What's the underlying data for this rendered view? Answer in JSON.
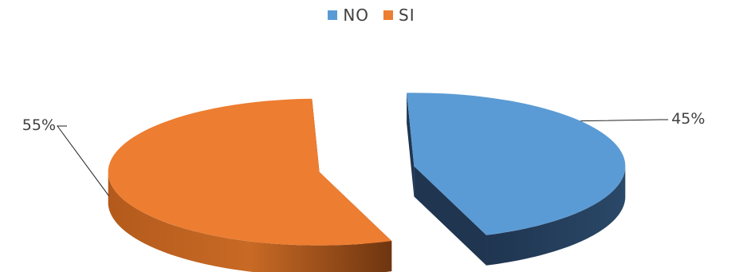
{
  "chart_data": {
    "type": "pie",
    "title": "",
    "labels": [
      "NO",
      "SI"
    ],
    "values": [
      45,
      55
    ],
    "value_labels": [
      "45%",
      "55%"
    ],
    "colors": [
      "#5b9bd5",
      "#ed7d31"
    ],
    "legend_position": "top",
    "style": "3d-exploded"
  }
}
